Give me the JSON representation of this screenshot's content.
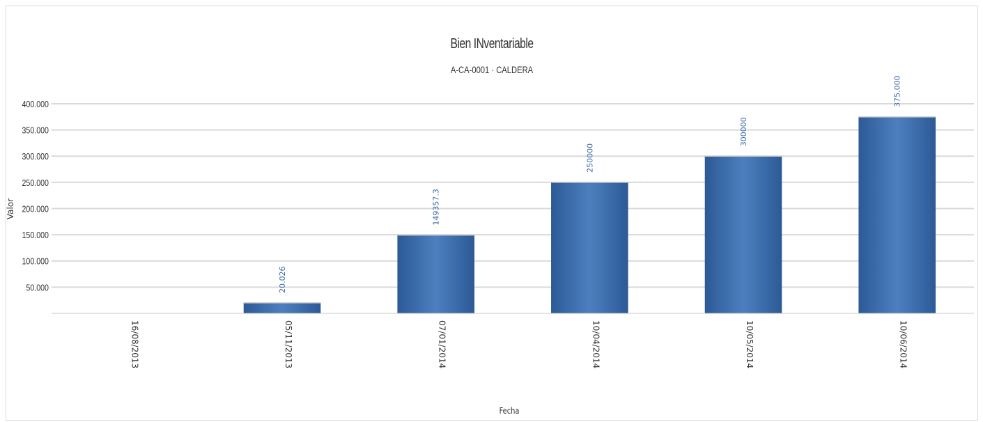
{
  "chart_data": {
    "type": "bar",
    "title": "Bien INventariable",
    "subtitle": "A-CA-0001 · CALDERA",
    "xlabel": "Fecha",
    "ylabel": "Valor",
    "categories": [
      "16/08/2013",
      "05/11/2013",
      "07/01/2014",
      "10/04/2014",
      "10/05/2014",
      "10/06/2014"
    ],
    "values": [
      0,
      20026,
      149357.3,
      250000,
      300000,
      375000
    ],
    "data_labels": [
      "",
      "20.026",
      "149357.3",
      "250000",
      "300000",
      "375.000"
    ],
    "ylim": [
      0,
      400000
    ],
    "yticks": [
      50000,
      100000,
      150000,
      200000,
      250000,
      300000,
      350000,
      400000
    ],
    "ytick_labels": [
      "50.000",
      "100.000",
      "150.000",
      "200.000",
      "250.000",
      "300.000",
      "350.000",
      "400.000"
    ],
    "grid": true,
    "colors": {
      "bar_dark": "#2c5a96",
      "bar_light": "#4d7fbf",
      "grid": "#d9d9d9",
      "label": "#3f6aa8"
    }
  }
}
